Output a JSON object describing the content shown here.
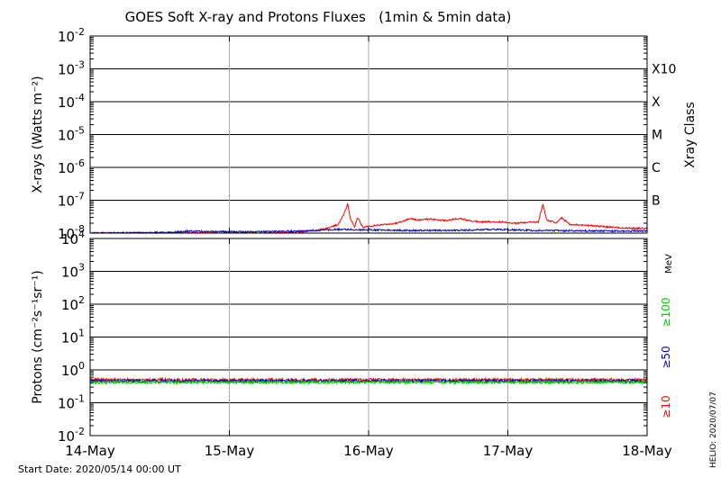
{
  "title": "GOES Soft X-ray and Protons Fluxes   (1min & 5min data)",
  "start_date": "Start Date: 2020/05/14 00:00 UT",
  "helio_stamp": "HELIO: 2020/07/07",
  "chart_data": [
    {
      "type": "line",
      "panel": "xrays",
      "ylabel": "X-rays (Watts m⁻²)",
      "yscale": "log",
      "ylim": [
        1e-08,
        0.01
      ],
      "y_ticks": [
        {
          "base": "10",
          "exp": "-8"
        },
        {
          "base": "10",
          "exp": "-7"
        },
        {
          "base": "10",
          "exp": "-6"
        },
        {
          "base": "10",
          "exp": "-5"
        },
        {
          "base": "10",
          "exp": "-4"
        },
        {
          "base": "10",
          "exp": "-3"
        },
        {
          "base": "10",
          "exp": "-2"
        }
      ],
      "right_axis_label": "Xray Class",
      "class_labels": [
        {
          "label": "B",
          "value": 1e-07
        },
        {
          "label": "C",
          "value": 1e-06
        },
        {
          "label": "M",
          "value": 1e-05
        },
        {
          "label": "X",
          "value": 0.0001
        },
        {
          "label": "X10",
          "value": 0.001
        }
      ],
      "series": [
        {
          "color": "#ff0000",
          "x": [
            14.0,
            14.5,
            15.0,
            15.3,
            15.45,
            15.62,
            15.7,
            15.78,
            15.82,
            15.85,
            15.87,
            15.9,
            15.92,
            15.96,
            16.0,
            16.1,
            16.2,
            16.3,
            16.35,
            16.45,
            16.55,
            16.65,
            16.75,
            16.85,
            16.95,
            17.05,
            17.15,
            17.22,
            17.25,
            17.28,
            17.35,
            17.38,
            17.45,
            17.6,
            17.75,
            17.9,
            18.0
          ],
          "y": [
            1e-08,
            1e-08,
            1e-08,
            1e-08,
            1.05e-08,
            1.2e-08,
            1.4e-08,
            1.8e-08,
            3.5e-08,
            8e-08,
            2.6e-08,
            1.6e-08,
            3e-08,
            1.5e-08,
            1.6e-08,
            1.8e-08,
            2e-08,
            2.8e-08,
            2.5e-08,
            2.7e-08,
            2.4e-08,
            2.8e-08,
            2.3e-08,
            2.2e-08,
            2.2e-08,
            2e-08,
            2.1e-08,
            2.2e-08,
            7.5e-08,
            2.5e-08,
            2e-08,
            3e-08,
            1.8e-08,
            1.7e-08,
            1.5e-08,
            1.4e-08,
            1.4e-08
          ]
        },
        {
          "color": "#0000cc",
          "x": [
            14.0,
            14.3,
            14.6,
            14.7,
            15.0,
            15.3,
            15.5,
            15.7,
            15.8,
            16.0,
            16.3,
            16.6,
            16.9,
            17.2,
            17.5,
            17.8,
            18.0
          ],
          "y": [
            1e-08,
            1.02e-08,
            1.05e-08,
            1.15e-08,
            1.1e-08,
            1.12e-08,
            1.15e-08,
            1.25e-08,
            1.3e-08,
            1.25e-08,
            1.2e-08,
            1.2e-08,
            1.3e-08,
            1.2e-08,
            1.18e-08,
            1.15e-08,
            1.15e-08
          ]
        }
      ]
    },
    {
      "type": "line",
      "panel": "protons",
      "ylabel": "Protons (cm⁻²s⁻¹sr⁻¹)",
      "yscale": "log",
      "ylim": [
        0.01,
        10000
      ],
      "y_ticks": [
        {
          "base": "10",
          "exp": "-2"
        },
        {
          "base": "10",
          "exp": "-1"
        },
        {
          "base": "10",
          "exp": "0"
        },
        {
          "base": "10",
          "exp": "1"
        },
        {
          "base": "10",
          "exp": "2"
        },
        {
          "base": "10",
          "exp": "3"
        },
        {
          "base": "10",
          "exp": "4"
        }
      ],
      "threshold": 10,
      "unit_label": "MeV",
      "series_labels": [
        {
          "label": "≥10",
          "color": "#ff0000"
        },
        {
          "label": "≥50",
          "color": "#0000cc"
        },
        {
          "label": "≥100",
          "color": "#00cc00"
        }
      ],
      "series": [
        {
          "color": "#ff0000",
          "x": [
            14.0,
            18.0
          ],
          "y": [
            0.5,
            0.5
          ]
        },
        {
          "color": "#0000cc",
          "x": [
            14.0,
            18.0
          ],
          "y": [
            0.46,
            0.46
          ]
        },
        {
          "color": "#00cc00",
          "x": [
            14.0,
            18.0
          ],
          "y": [
            0.42,
            0.42
          ]
        }
      ]
    }
  ],
  "x_axis": {
    "ticks": [
      {
        "label": "14-May",
        "value": 14
      },
      {
        "label": "15-May",
        "value": 15
      },
      {
        "label": "16-May",
        "value": 16
      },
      {
        "label": "17-May",
        "value": 17
      },
      {
        "label": "18-May",
        "value": 18
      }
    ]
  },
  "colors": {
    "xray_long": "#ff0000",
    "xray_short": "#0000cc",
    "gridline": "#000000",
    "day_line": "#aaaaaa"
  }
}
